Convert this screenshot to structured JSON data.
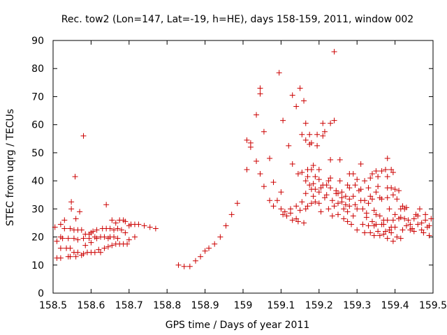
{
  "chart_data": {
    "type": "scatter",
    "title": "Rec. tow2 (Lon=147, Lat=-19, h=HE), days 158-159, 2011, window 002",
    "xlabel": "GPS time / Days of year 2011",
    "ylabel": "STEC from uqrg / TECUs",
    "xlim": [
      158.5,
      159.5
    ],
    "ylim": [
      0,
      90
    ],
    "xticks": [
      158.5,
      158.6,
      158.7,
      158.8,
      158.9,
      159,
      159.1,
      159.2,
      159.3,
      159.4,
      159.5
    ],
    "xtick_labels": [
      "158.5",
      "158.6",
      "158.7",
      "158.8",
      "158.9",
      "159",
      "159.1",
      "159.2",
      "159.3",
      "159.4",
      "159.5"
    ],
    "yticks": [
      0,
      10,
      20,
      30,
      40,
      50,
      60,
      70,
      80,
      90
    ],
    "ytick_labels": [
      "0",
      "10",
      "20",
      "30",
      "40",
      "50",
      "60",
      "70",
      "80",
      "90"
    ],
    "grid": false,
    "marker": "+",
    "color": "#cc0000",
    "series": [
      {
        "name": "STEC",
        "points": [
          [
            158.505,
            23.5
          ],
          [
            158.51,
            18.5
          ],
          [
            158.51,
            12.5
          ],
          [
            158.52,
            24.5
          ],
          [
            158.52,
            20
          ],
          [
            158.52,
            16
          ],
          [
            158.52,
            12.5
          ],
          [
            158.525,
            19.5
          ],
          [
            158.53,
            26
          ],
          [
            158.53,
            23
          ],
          [
            158.535,
            16
          ],
          [
            158.54,
            19.5
          ],
          [
            158.54,
            13
          ],
          [
            158.545,
            23
          ],
          [
            158.545,
            16
          ],
          [
            158.545,
            13
          ],
          [
            158.548,
            32.5
          ],
          [
            158.548,
            30
          ],
          [
            158.555,
            22.5
          ],
          [
            158.555,
            19.5
          ],
          [
            158.555,
            14.5
          ],
          [
            158.558,
            41.5
          ],
          [
            158.56,
            26.5
          ],
          [
            158.56,
            13
          ],
          [
            158.565,
            22.5
          ],
          [
            158.565,
            19
          ],
          [
            158.565,
            14.5
          ],
          [
            158.57,
            29
          ],
          [
            158.575,
            22.5
          ],
          [
            158.575,
            13.5
          ],
          [
            158.58,
            56
          ],
          [
            158.58,
            19.5
          ],
          [
            158.58,
            14
          ],
          [
            158.585,
            21
          ],
          [
            158.585,
            17
          ],
          [
            158.59,
            14.5
          ],
          [
            158.595,
            21
          ],
          [
            158.595,
            19.5
          ],
          [
            158.6,
            21.5
          ],
          [
            158.6,
            18
          ],
          [
            158.6,
            14.5
          ],
          [
            158.605,
            22
          ],
          [
            158.61,
            20
          ],
          [
            158.61,
            14.5
          ],
          [
            158.615,
            22.5
          ],
          [
            158.615,
            19.5
          ],
          [
            158.62,
            15.5
          ],
          [
            158.625,
            20
          ],
          [
            158.625,
            14.5
          ],
          [
            158.63,
            23
          ],
          [
            158.635,
            20
          ],
          [
            158.635,
            16
          ],
          [
            158.64,
            31.5
          ],
          [
            158.64,
            23
          ],
          [
            158.645,
            19.5
          ],
          [
            158.645,
            16.5
          ],
          [
            158.65,
            23
          ],
          [
            158.65,
            20
          ],
          [
            158.655,
            26
          ],
          [
            158.655,
            17
          ],
          [
            158.66,
            22.5
          ],
          [
            158.66,
            20
          ],
          [
            158.665,
            25
          ],
          [
            158.665,
            17.5
          ],
          [
            158.67,
            23
          ],
          [
            158.67,
            19.5
          ],
          [
            158.675,
            26
          ],
          [
            158.675,
            17.5
          ],
          [
            158.68,
            22.5
          ],
          [
            158.685,
            26
          ],
          [
            158.685,
            17.5
          ],
          [
            158.69,
            21.5
          ],
          [
            158.69,
            25.5
          ],
          [
            158.695,
            17.5
          ],
          [
            158.7,
            24
          ],
          [
            158.7,
            19
          ],
          [
            158.705,
            24.5
          ],
          [
            158.715,
            24.5
          ],
          [
            158.715,
            20
          ],
          [
            158.725,
            24.5
          ],
          [
            158.74,
            24
          ],
          [
            158.755,
            23.5
          ],
          [
            158.77,
            23
          ],
          [
            158.83,
            10
          ],
          [
            158.845,
            9.5
          ],
          [
            158.86,
            9.5
          ],
          [
            158.875,
            11.5
          ],
          [
            158.888,
            13
          ],
          [
            158.9,
            15
          ],
          [
            158.91,
            16
          ],
          [
            158.925,
            17.5
          ],
          [
            158.94,
            20
          ],
          [
            158.955,
            24
          ],
          [
            158.97,
            28
          ],
          [
            158.985,
            32
          ],
          [
            159.01,
            54.5
          ],
          [
            159.01,
            44
          ],
          [
            159.02,
            53.5
          ],
          [
            159.02,
            52
          ],
          [
            159.035,
            63.5
          ],
          [
            159.035,
            47
          ],
          [
            159.045,
            73
          ],
          [
            159.045,
            71
          ],
          [
            159.045,
            42.5
          ],
          [
            159.055,
            57.5
          ],
          [
            159.055,
            38
          ],
          [
            159.07,
            48
          ],
          [
            159.07,
            33
          ],
          [
            159.08,
            39.5
          ],
          [
            159.08,
            31
          ],
          [
            159.09,
            33
          ],
          [
            159.095,
            78.5
          ],
          [
            159.1,
            30
          ],
          [
            159.105,
            61.5
          ],
          [
            159.105,
            28
          ],
          [
            159.115,
            27.5
          ],
          [
            159.12,
            52.5
          ],
          [
            159.125,
            30
          ],
          [
            159.13,
            70.5
          ],
          [
            159.13,
            46
          ],
          [
            159.13,
            26
          ],
          [
            159.14,
            66.5
          ],
          [
            159.145,
            42.5
          ],
          [
            159.14,
            31
          ],
          [
            159.145,
            25.5
          ],
          [
            159.15,
            73
          ],
          [
            159.155,
            56.5
          ],
          [
            159.155,
            43
          ],
          [
            159.155,
            32.5
          ],
          [
            159.16,
            68.5
          ],
          [
            159.165,
            60.5
          ],
          [
            159.165,
            54.5
          ],
          [
            159.165,
            40
          ],
          [
            159.165,
            35.5
          ],
          [
            159.165,
            30
          ],
          [
            159.17,
            44
          ],
          [
            159.17,
            41.5
          ],
          [
            159.175,
            56.5
          ],
          [
            159.175,
            53
          ],
          [
            159.18,
            53.5
          ],
          [
            159.18,
            44
          ],
          [
            159.18,
            37
          ],
          [
            159.18,
            32
          ],
          [
            159.185,
            45.5
          ],
          [
            159.185,
            39
          ],
          [
            159.19,
            37
          ],
          [
            159.19,
            32.5
          ],
          [
            159.195,
            56.5
          ],
          [
            159.195,
            52.5
          ],
          [
            159.2,
            44
          ],
          [
            159.2,
            40.5
          ],
          [
            159.2,
            36
          ],
          [
            159.2,
            32
          ],
          [
            159.205,
            29
          ],
          [
            159.21,
            56
          ],
          [
            159.21,
            60.5
          ],
          [
            159.215,
            57.5
          ],
          [
            159.22,
            38.5
          ],
          [
            159.22,
            35
          ],
          [
            159.225,
            30
          ],
          [
            159.23,
            60.5
          ],
          [
            159.23,
            47.5
          ],
          [
            159.23,
            41
          ],
          [
            159.23,
            37.5
          ],
          [
            159.235,
            33
          ],
          [
            159.235,
            27.5
          ],
          [
            159.24,
            86
          ],
          [
            159.24,
            61.5
          ],
          [
            159.245,
            35.5
          ],
          [
            159.25,
            35.5
          ],
          [
            159.25,
            32
          ],
          [
            159.25,
            28
          ],
          [
            159.255,
            47.5
          ],
          [
            159.255,
            40
          ],
          [
            159.26,
            36
          ],
          [
            159.26,
            34
          ],
          [
            159.265,
            26.5
          ],
          [
            159.27,
            34.5
          ],
          [
            159.27,
            31.5
          ],
          [
            159.275,
            38.5
          ],
          [
            159.275,
            29
          ],
          [
            159.28,
            42.5
          ],
          [
            159.28,
            37.5
          ],
          [
            159.28,
            33.5
          ],
          [
            159.285,
            24.5
          ],
          [
            159.29,
            42.5
          ],
          [
            159.29,
            34.5
          ],
          [
            159.295,
            38.5
          ],
          [
            159.295,
            31.5
          ],
          [
            159.3,
            30
          ],
          [
            159.3,
            22.5
          ],
          [
            159.305,
            36.5
          ],
          [
            159.31,
            46
          ],
          [
            159.31,
            37
          ],
          [
            159.31,
            33
          ],
          [
            159.315,
            30
          ],
          [
            159.315,
            24.5
          ],
          [
            159.32,
            40
          ],
          [
            159.32,
            33
          ],
          [
            159.32,
            21.5
          ],
          [
            159.325,
            28.5
          ],
          [
            159.33,
            37.5
          ],
          [
            159.33,
            32
          ],
          [
            159.33,
            24
          ],
          [
            159.335,
            41
          ],
          [
            159.335,
            21.5
          ],
          [
            159.34,
            42.5
          ],
          [
            159.34,
            33.5
          ],
          [
            159.34,
            25.5
          ],
          [
            159.345,
            29.5
          ],
          [
            159.345,
            20.5
          ],
          [
            159.35,
            43.5
          ],
          [
            159.35,
            36
          ],
          [
            159.35,
            24.5
          ],
          [
            159.355,
            41.5
          ],
          [
            159.355,
            38
          ],
          [
            159.36,
            34
          ],
          [
            159.36,
            27.5
          ],
          [
            159.36,
            20.5
          ],
          [
            159.365,
            43.5
          ],
          [
            159.365,
            24.5
          ],
          [
            159.37,
            26
          ],
          [
            159.37,
            21
          ],
          [
            159.375,
            44
          ],
          [
            159.38,
            48
          ],
          [
            159.38,
            41.5
          ],
          [
            159.38,
            37.5
          ],
          [
            159.38,
            34
          ],
          [
            159.38,
            26
          ],
          [
            159.38,
            19.5
          ],
          [
            159.385,
            30
          ],
          [
            159.385,
            22.5
          ],
          [
            159.39,
            44
          ],
          [
            159.39,
            37.5
          ],
          [
            159.39,
            21.5
          ],
          [
            159.395,
            26
          ],
          [
            159.395,
            18.5
          ],
          [
            159.4,
            37
          ],
          [
            159.4,
            28
          ],
          [
            159.4,
            23.5
          ],
          [
            159.405,
            20
          ],
          [
            159.41,
            36.5
          ],
          [
            159.41,
            26.5
          ],
          [
            159.415,
            27
          ],
          [
            159.415,
            19.5
          ],
          [
            159.42,
            31
          ],
          [
            159.42,
            22.5
          ],
          [
            159.425,
            30
          ],
          [
            159.43,
            30.5
          ],
          [
            159.43,
            24
          ],
          [
            159.435,
            26
          ],
          [
            159.44,
            22.5
          ],
          [
            159.445,
            23
          ],
          [
            159.45,
            22
          ],
          [
            159.455,
            28
          ],
          [
            159.46,
            27.5
          ],
          [
            159.465,
            30
          ],
          [
            159.47,
            25
          ],
          [
            159.475,
            21.5
          ],
          [
            159.48,
            28
          ],
          [
            159.485,
            23.5
          ],
          [
            159.49,
            20.5
          ],
          [
            159.495,
            26.5
          ],
          [
            159.49,
            24
          ],
          [
            159.48,
            26
          ],
          [
            159.47,
            22.5
          ],
          [
            159.46,
            24.5
          ],
          [
            159.45,
            26.5
          ],
          [
            159.44,
            24.5
          ],
          [
            159.425,
            26.5
          ],
          [
            159.415,
            30
          ],
          [
            159.405,
            33.5
          ],
          [
            159.395,
            35
          ],
          [
            159.395,
            43
          ],
          [
            159.39,
            23.5
          ],
          [
            159.375,
            22
          ],
          [
            159.37,
            24.5
          ],
          [
            159.365,
            33.5
          ],
          [
            159.355,
            22
          ],
          [
            159.35,
            28
          ],
          [
            159.345,
            24
          ],
          [
            159.335,
            34.5
          ],
          [
            159.325,
            27
          ],
          [
            159.3,
            40.5
          ],
          [
            159.29,
            27.5
          ],
          [
            159.28,
            31
          ],
          [
            159.275,
            25.5
          ],
          [
            159.265,
            30
          ],
          [
            159.26,
            32.5
          ],
          [
            159.245,
            36.5
          ],
          [
            159.24,
            31
          ],
          [
            159.225,
            40
          ],
          [
            159.215,
            34
          ],
          [
            159.21,
            38.5
          ],
          [
            159.205,
            37.5
          ],
          [
            159.19,
            41.5
          ],
          [
            159.185,
            34.5
          ],
          [
            159.175,
            38.5
          ],
          [
            159.17,
            31
          ],
          [
            159.16,
            25
          ],
          [
            159.15,
            29.5
          ],
          [
            159.14,
            26.5
          ],
          [
            159.125,
            28.5
          ],
          [
            159.11,
            29
          ],
          [
            159.1,
            36
          ]
        ]
      }
    ]
  }
}
